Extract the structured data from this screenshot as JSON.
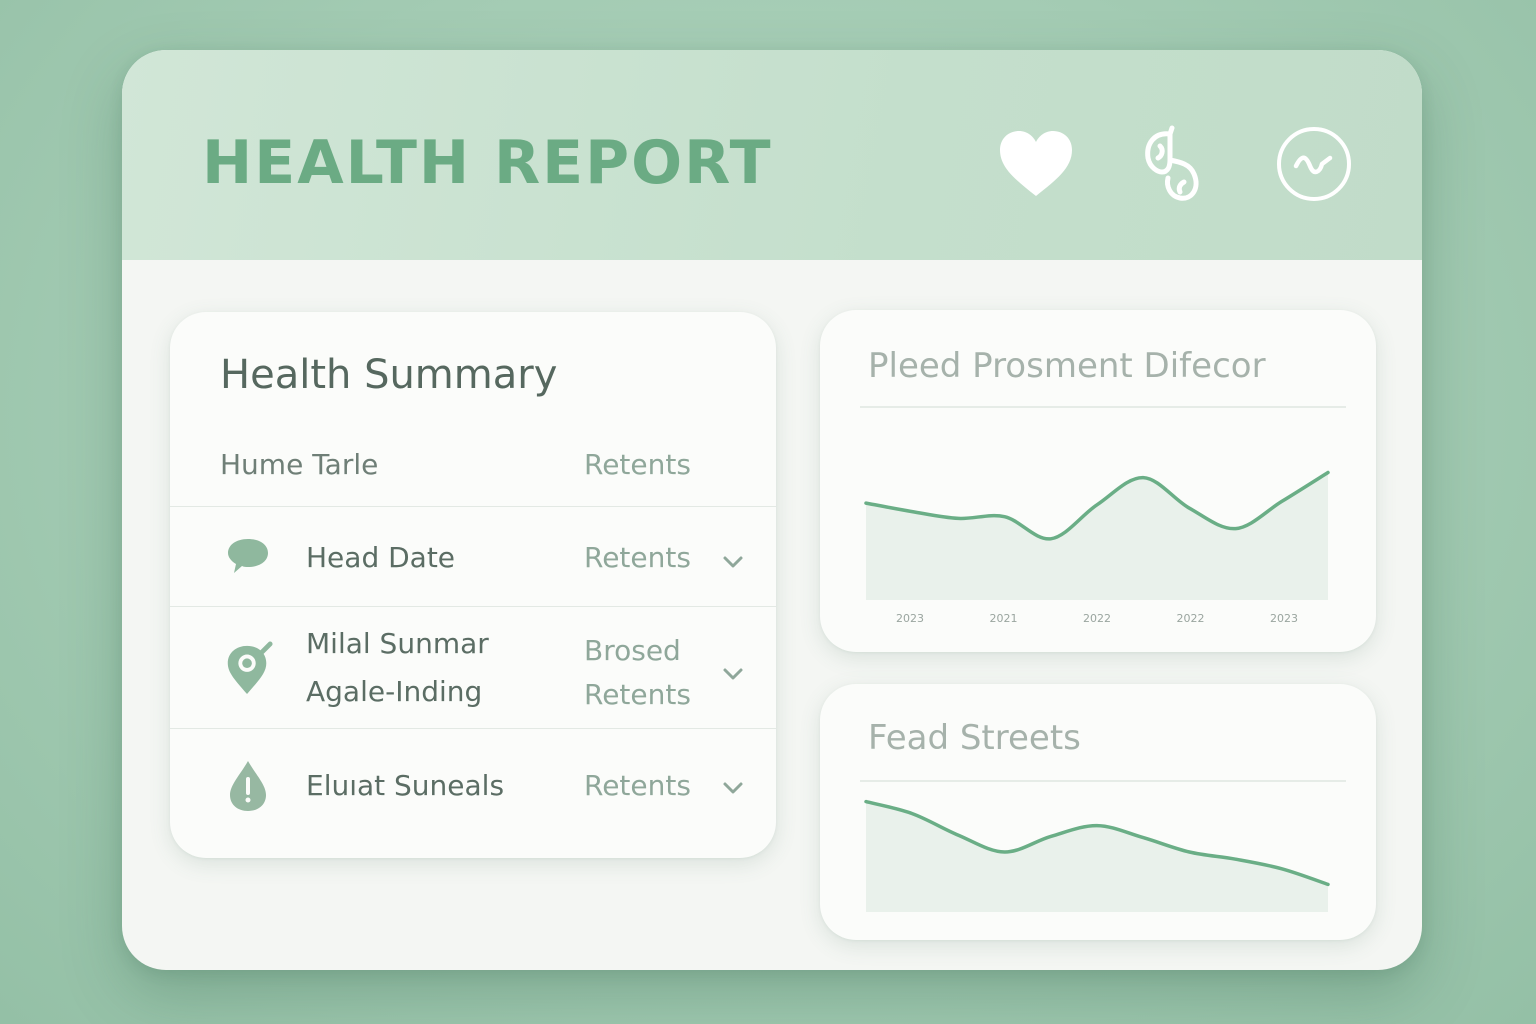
{
  "header": {
    "title": "HEALTH REPORT",
    "icons": [
      "heart-icon",
      "lungs-icon",
      "pulse-icon"
    ]
  },
  "summary": {
    "title": "Health Summary",
    "col_left": "Hume Tarle",
    "col_right": "Retents",
    "rows": [
      {
        "icon": "chat-bubble-icon",
        "label": [
          "Head Date"
        ],
        "value": [
          "Retents"
        ]
      },
      {
        "icon": "location-pin-icon",
        "label": [
          "Milal Sunmar",
          "Agale-Inding"
        ],
        "value": [
          "Brosed",
          "Retents"
        ]
      },
      {
        "icon": "drop-icon",
        "label": [
          "Eluıat Suneals"
        ],
        "value": [
          "Retents"
        ]
      }
    ]
  },
  "chart_data": [
    {
      "type": "area",
      "title": "Pleed Prosment Difecor",
      "x": [
        0,
        1,
        2,
        3,
        4,
        5,
        6,
        7,
        8,
        9,
        10
      ],
      "y": [
        57,
        52,
        48,
        49,
        36,
        56,
        72,
        54,
        42,
        58,
        75
      ],
      "x_tick_labels": [
        "2023",
        "2021",
        "2022",
        "2022",
        "2023"
      ],
      "ylim": [
        0,
        100
      ],
      "grid": false,
      "color": "#6aae86"
    },
    {
      "type": "area",
      "title": "Fead Streets",
      "x": [
        0,
        1,
        2,
        3,
        4,
        5,
        6,
        7,
        8,
        9,
        10
      ],
      "y": [
        92,
        82,
        64,
        50,
        63,
        72,
        62,
        50,
        44,
        36,
        23
      ],
      "ylim": [
        0,
        100
      ],
      "grid": false,
      "color": "#6aae86"
    }
  ],
  "colors": {
    "accent": "#6aae86",
    "header_bg": "#c6e0ce",
    "background": "#a3cbb3"
  }
}
